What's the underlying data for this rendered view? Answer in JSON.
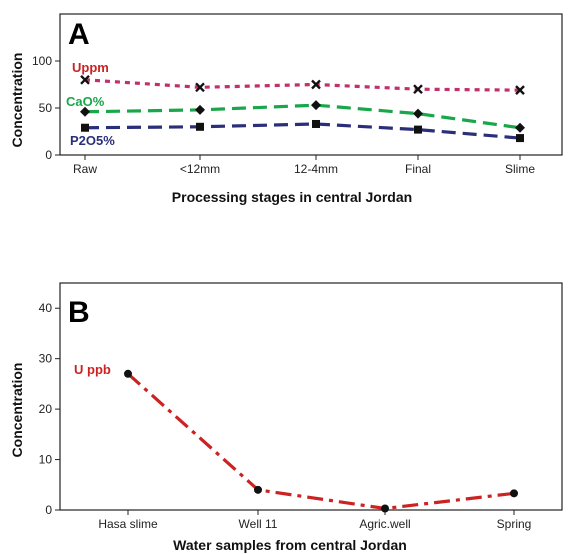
{
  "chart_data": [
    {
      "type": "line",
      "panel_label": "A",
      "xlabel": "Processing stages in central Jordan",
      "ylabel": "Concentration",
      "categories": [
        "Raw",
        "<12mm",
        "12-4mm",
        "Final",
        "Slime"
      ],
      "ylim": [
        0,
        150
      ],
      "yticks": [
        0,
        50,
        100
      ],
      "grid": false,
      "series": [
        {
          "name": "Uppm",
          "values": [
            80,
            72,
            75,
            70,
            69
          ],
          "color": "#c0306a",
          "marker": "x",
          "label_color": "#cc2222"
        },
        {
          "name": "CaO%",
          "values": [
            46,
            48,
            53,
            44,
            29
          ],
          "color": "#1aa64a",
          "marker": "diamond",
          "label_color": "#1aa64a"
        },
        {
          "name": "P2O5%",
          "values": [
            29,
            30,
            33,
            27,
            18
          ],
          "color": "#2b2f7a",
          "marker": "square",
          "label_color": "#2b2f7a"
        }
      ]
    },
    {
      "type": "line",
      "panel_label": "B",
      "xlabel": "Water samples from central Jordan",
      "ylabel": "Concentration",
      "categories": [
        "Hasa slime",
        "Well 11",
        "Agric.well",
        "Spring"
      ],
      "ylim": [
        0,
        45
      ],
      "yticks": [
        0,
        10,
        20,
        30,
        40
      ],
      "grid": false,
      "series": [
        {
          "name": "U ppb",
          "values": [
            27,
            4,
            0.3,
            3.3
          ],
          "color": "#cc2222",
          "marker": "dot",
          "label_color": "#cc2222"
        }
      ]
    }
  ]
}
